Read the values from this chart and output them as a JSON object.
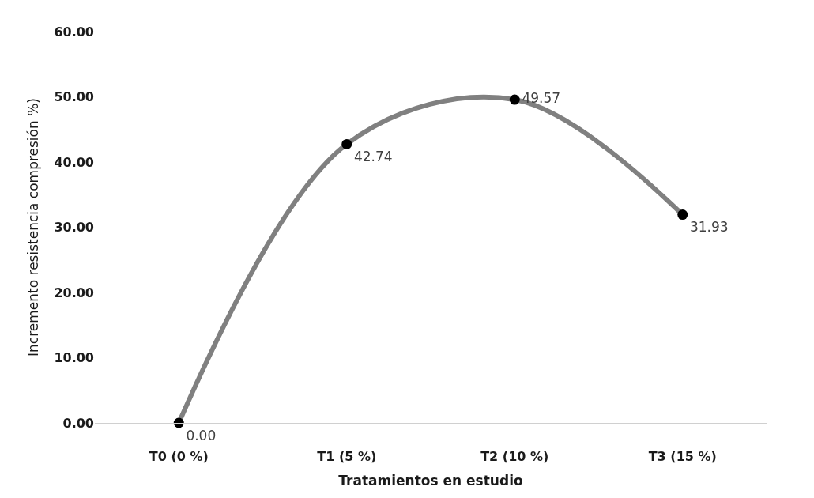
{
  "chart_data": {
    "type": "line",
    "xlabel": "Tratamientos en estudio",
    "ylabel": "Incremento resistencia compresión %)",
    "categories": [
      "T0 (0 %)",
      "T1 (5 %)",
      "T2 (10 %)",
      "T3 (15 %)"
    ],
    "series": [
      {
        "color": "#808080",
        "colors": [
          "#000000",
          "#000000",
          "#000000",
          "#000000"
        ],
        "values": [
          0.0,
          42.74,
          49.57,
          31.93
        ],
        "value_labels": [
          "0.00",
          "42.74",
          "49.57",
          "31.93"
        ]
      }
    ],
    "ylim": [
      0,
      60
    ],
    "yticks": [
      {
        "value": 0,
        "label": "0.00"
      },
      {
        "value": 10,
        "label": "10.00"
      },
      {
        "value": 20,
        "label": "20.00"
      },
      {
        "value": 30,
        "label": "30.00"
      },
      {
        "value": 40,
        "label": "40.00"
      },
      {
        "value": 50,
        "label": "50.00"
      },
      {
        "value": 60,
        "label": "60.00"
      }
    ],
    "grid": false,
    "marker": "circle",
    "line_style": "solid"
  }
}
